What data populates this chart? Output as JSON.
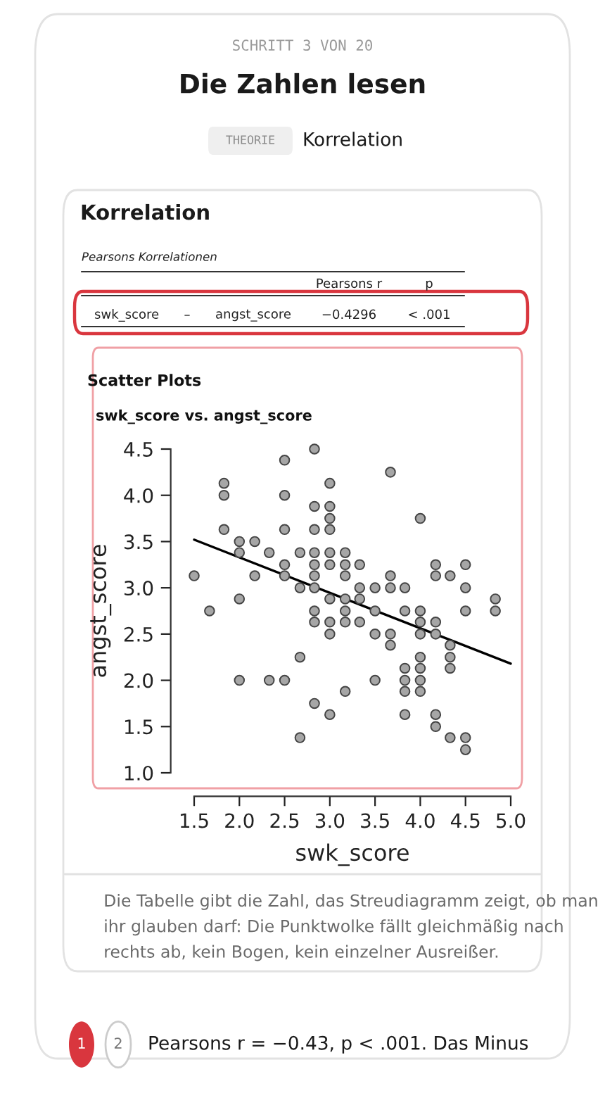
{
  "chart_data": {
    "type": "scatter",
    "title": "swk_score vs. angst_score",
    "xlabel": "swk_score",
    "ylabel": "angst_score",
    "annotations": [
      "SCHRITT 3 VON 20",
      "Die Zahlen lesen",
      "THEORIE",
      "Korrelation",
      "Korrelation",
      "Pearsons Korrelationen",
      "Pearsons r",
      "p",
      "swk_score",
      "–",
      "angst_score",
      "−0.4296",
      "< .001",
      "Scatter Plots",
      "Die Tabelle gibt die Zahl, das Streudiagramm zeigt, ob man ihr glauben darf: Die Punktwolke fällt gleichmäßig nach rechts ab, kein Bogen, kein einzelner Ausreißer.",
      "1",
      "2",
      "Pearsons r = −0.43, p < .001. Das Minus"
    ],
    "series": [
      {
        "marker": "circle",
        "color": "#a6a6a6",
        "x": [
          2.83,
          2.5,
          3.67,
          1.83,
          3.0,
          1.83,
          2.5,
          2.83,
          3.0,
          3.0,
          4.0,
          1.83,
          2.5,
          2.83,
          3.0,
          2.0,
          2.17,
          2.0,
          2.33,
          2.67,
          2.83,
          3.0,
          3.17,
          2.5,
          2.83,
          3.0,
          3.17,
          3.33,
          4.17,
          4.5,
          1.5,
          2.17,
          2.5,
          2.83,
          3.17,
          3.67,
          4.17,
          4.33,
          2.67,
          2.83,
          3.33,
          3.5,
          3.67,
          3.83,
          4.5,
          2.0,
          3.0,
          3.17,
          3.33,
          4.83,
          1.67,
          2.83,
          3.17,
          3.5,
          3.83,
          4.0,
          4.5,
          4.83,
          2.83,
          3.0,
          3.17,
          3.33,
          4.0,
          4.17,
          3.0,
          3.5,
          3.67,
          4.0,
          4.17,
          3.67,
          4.33,
          2.67,
          4.0,
          4.33,
          3.83,
          4.0,
          4.33,
          2.0,
          2.33,
          2.5,
          3.5,
          3.83,
          4.0,
          3.17,
          3.83,
          4.0,
          2.83,
          3.0,
          3.83,
          4.17,
          4.17,
          2.67,
          4.33,
          4.5,
          4.5
        ],
        "values": [
          4.5,
          4.38,
          4.25,
          4.13,
          4.13,
          4.0,
          4.0,
          3.88,
          3.88,
          3.75,
          3.75,
          3.63,
          3.63,
          3.63,
          3.63,
          3.5,
          3.5,
          3.38,
          3.38,
          3.38,
          3.38,
          3.38,
          3.38,
          3.25,
          3.25,
          3.25,
          3.25,
          3.25,
          3.25,
          3.25,
          3.13,
          3.13,
          3.13,
          3.13,
          3.13,
          3.13,
          3.13,
          3.13,
          3.0,
          3.0,
          3.0,
          3.0,
          3.0,
          3.0,
          3.0,
          2.88,
          2.88,
          2.88,
          2.88,
          2.88,
          2.75,
          2.75,
          2.75,
          2.75,
          2.75,
          2.75,
          2.75,
          2.75,
          2.63,
          2.63,
          2.63,
          2.63,
          2.63,
          2.63,
          2.5,
          2.5,
          2.5,
          2.5,
          2.5,
          2.38,
          2.38,
          2.25,
          2.25,
          2.25,
          2.13,
          2.13,
          2.13,
          2.0,
          2.0,
          2.0,
          2.0,
          2.0,
          2.0,
          1.88,
          1.88,
          1.88,
          1.75,
          1.63,
          1.63,
          1.63,
          1.5,
          1.38,
          1.38,
          1.38,
          1.25
        ]
      },
      {
        "type": "line",
        "color": "#000000",
        "x": [
          1.5,
          5.0
        ],
        "values": [
          3.52,
          2.18
        ]
      }
    ],
    "grid": false,
    "legend": false,
    "xlim": [
      1.5,
      5.0
    ],
    "ylim": [
      1.0,
      4.5
    ],
    "xticks": [
      1.5,
      {
        "value": 2,
        "label": "2.0"
      },
      2.5,
      {
        "value": 3,
        "label": "3.0"
      },
      3.5,
      {
        "value": 4,
        "label": "4.0"
      },
      4.5,
      {
        "value": 5,
        "label": "5.0"
      }
    ],
    "yticks": [
      {
        "value": 1,
        "label": "1.0"
      },
      1.5,
      {
        "value": 2,
        "label": "2.0"
      },
      2.5,
      {
        "value": 3,
        "label": "3.0"
      },
      3.5,
      {
        "value": 4,
        "label": "4.0"
      },
      4.5
    ]
  }
}
